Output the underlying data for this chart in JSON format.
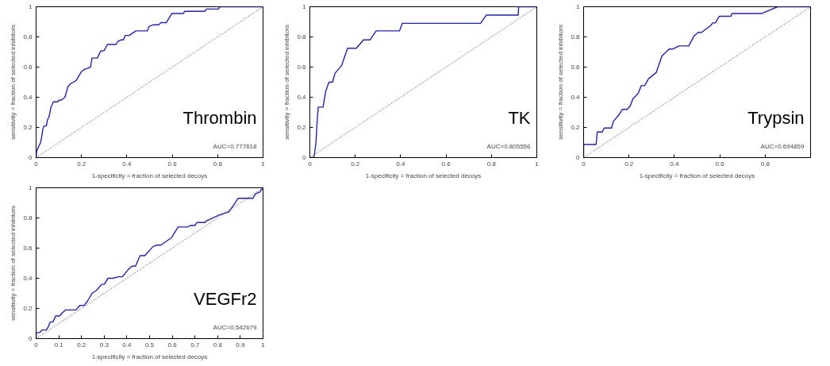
{
  "chart_data": [
    {
      "type": "line",
      "title": "Thrombin",
      "xlabel": "1-specificity = fraction of selected decoys",
      "ylabel": "sensitivity = fraction of selected inhibitors",
      "annotations": [
        "AUC=0.777618"
      ],
      "xlim": [
        0,
        1
      ],
      "ylim": [
        0,
        1
      ],
      "xticks": [
        0,
        0.2,
        0.4,
        0.6,
        0.8,
        1
      ],
      "yticks": [
        0,
        0.2,
        0.4,
        0.6,
        0.8,
        1
      ],
      "grid": false,
      "series": [
        {
          "color": "#2222aa",
          "line_style": "solid",
          "x": [
            0,
            0.002,
            0.01,
            0.02,
            0.026,
            0.03,
            0.035,
            0.045,
            0.05,
            0.057,
            0.065,
            0.076,
            0.096,
            0.1,
            0.11,
            0.127,
            0.14,
            0.152,
            0.164,
            0.176,
            0.188,
            0.2,
            0.213,
            0.223,
            0.24,
            0.246,
            0.27,
            0.284,
            0.3,
            0.314,
            0.352,
            0.36,
            0.373,
            0.385,
            0.393,
            0.41,
            0.44,
            0.49,
            0.498,
            0.516,
            0.54,
            0.55,
            0.574,
            0.598,
            0.65,
            0.654,
            0.744,
            0.75,
            0.803,
            0.81,
            1
          ],
          "values": [
            0,
            0.04,
            0.07,
            0.1,
            0.15,
            0.19,
            0.21,
            0.21,
            0.25,
            0.27,
            0.33,
            0.37,
            0.37,
            0.38,
            0.38,
            0.4,
            0.47,
            0.49,
            0.5,
            0.51,
            0.54,
            0.57,
            0.585,
            0.59,
            0.6,
            0.66,
            0.66,
            0.705,
            0.71,
            0.75,
            0.75,
            0.77,
            0.78,
            0.78,
            0.81,
            0.81,
            0.84,
            0.84,
            0.87,
            0.88,
            0.88,
            0.895,
            0.895,
            0.955,
            0.955,
            0.97,
            0.97,
            0.985,
            0.985,
            1,
            1
          ]
        },
        {
          "color": "#000000",
          "line_style": "dotted",
          "x": [
            0,
            1
          ],
          "values": [
            0,
            1
          ]
        }
      ]
    },
    {
      "type": "line",
      "title": "TK",
      "xlabel": "1-specificity = fraction of selected decoys",
      "ylabel": "sensitivity = fraction of selected inhibitors",
      "annotations": [
        "AUC=0.805556"
      ],
      "xlim": [
        0,
        1
      ],
      "ylim": [
        0,
        1
      ],
      "xticks": [
        0,
        0.2,
        0.4,
        0.6,
        0.8,
        1
      ],
      "yticks": [
        0,
        0.2,
        0.4,
        0.6,
        0.8,
        1
      ],
      "grid": false,
      "series": [
        {
          "color": "#2222aa",
          "line_style": "solid",
          "x": [
            0,
            0.018,
            0.027,
            0.032,
            0.037,
            0.058,
            0.07,
            0.084,
            0.1,
            0.111,
            0.14,
            0.166,
            0.205,
            0.236,
            0.265,
            0.292,
            0.395,
            0.407,
            0.752,
            0.778,
            0.918,
            0.92,
            1
          ],
          "values": [
            0,
            0,
            0.1,
            0.24,
            0.335,
            0.335,
            0.44,
            0.5,
            0.5,
            0.56,
            0.61,
            0.725,
            0.725,
            0.78,
            0.78,
            0.84,
            0.84,
            0.89,
            0.89,
            0.945,
            0.945,
            1,
            1
          ]
        },
        {
          "color": "#000000",
          "line_style": "dotted",
          "x": [
            0,
            1
          ],
          "values": [
            0,
            1
          ]
        }
      ]
    },
    {
      "type": "line",
      "title": "Trypsin",
      "xlabel": "1-specificity = fraction of selected decoys",
      "ylabel": "sensitivity = fraction of selected inhibitors",
      "annotations": [
        "AUC=0.694859"
      ],
      "xlim": [
        0,
        1
      ],
      "ylim": [
        0,
        1
      ],
      "xticks": [
        0,
        0.2,
        0.4,
        0.6,
        0.8
      ],
      "yticks": [
        0,
        0.2,
        0.4,
        0.6,
        0.8,
        1
      ],
      "grid": false,
      "series": [
        {
          "color": "#2222aa",
          "line_style": "solid",
          "x": [
            0,
            0,
            0.055,
            0.06,
            0.082,
            0.091,
            0.123,
            0.131,
            0.154,
            0.171,
            0.192,
            0.206,
            0.217,
            0.24,
            0.254,
            0.269,
            0.286,
            0.32,
            0.345,
            0.377,
            0.394,
            0.42,
            0.463,
            0.486,
            0.505,
            0.52,
            0.56,
            0.569,
            0.58,
            0.598,
            0.649,
            0.654,
            0.783,
            0.855,
            1
          ],
          "values": [
            0,
            0.087,
            0.087,
            0.17,
            0.17,
            0.196,
            0.196,
            0.24,
            0.28,
            0.32,
            0.32,
            0.345,
            0.39,
            0.425,
            0.477,
            0.477,
            0.523,
            0.564,
            0.674,
            0.72,
            0.72,
            0.74,
            0.74,
            0.805,
            0.83,
            0.83,
            0.875,
            0.893,
            0.893,
            0.937,
            0.937,
            0.955,
            0.955,
            1,
            1
          ]
        },
        {
          "color": "#000000",
          "line_style": "dotted",
          "x": [
            0,
            1
          ],
          "values": [
            0,
            1
          ]
        }
      ]
    },
    {
      "type": "line",
      "title": "VEGFr2",
      "xlabel": "1-specificity = fraction of selected decoys",
      "ylabel": "sensitivity = fraction of selected inhibitors",
      "annotations": [
        "AUC=0.542679"
      ],
      "xlim": [
        0,
        1
      ],
      "ylim": [
        0,
        1
      ],
      "xticks": [
        0,
        0.1,
        0.2,
        0.3,
        0.4,
        0.5,
        0.6,
        0.7,
        0.8,
        0.9,
        1
      ],
      "yticks": [
        0,
        0.2,
        0.4,
        0.6,
        0.8,
        1
      ],
      "grid": false,
      "series": [
        {
          "color": "#2222aa",
          "line_style": "solid",
          "x": [
            0,
            0.001,
            0.015,
            0.027,
            0.045,
            0.054,
            0.062,
            0.074,
            0.086,
            0.103,
            0.115,
            0.129,
            0.176,
            0.192,
            0.212,
            0.227,
            0.247,
            0.266,
            0.289,
            0.3,
            0.317,
            0.338,
            0.362,
            0.38,
            0.407,
            0.423,
            0.438,
            0.458,
            0.479,
            0.515,
            0.532,
            0.55,
            0.597,
            0.626,
            0.667,
            0.679,
            0.7,
            0.709,
            0.744,
            0.75,
            0.808,
            0.849,
            0.873,
            0.89,
            0.955,
            0.967,
            0.985,
            1
          ],
          "values": [
            0,
            0.04,
            0.04,
            0.057,
            0.057,
            0.08,
            0.11,
            0.11,
            0.15,
            0.15,
            0.17,
            0.19,
            0.19,
            0.22,
            0.22,
            0.25,
            0.3,
            0.32,
            0.36,
            0.36,
            0.4,
            0.4,
            0.41,
            0.41,
            0.46,
            0.48,
            0.48,
            0.55,
            0.55,
            0.61,
            0.62,
            0.62,
            0.67,
            0.74,
            0.74,
            0.75,
            0.75,
            0.77,
            0.77,
            0.78,
            0.82,
            0.84,
            0.89,
            0.93,
            0.93,
            0.96,
            0.97,
            1
          ]
        },
        {
          "color": "#000000",
          "line_style": "dotted",
          "x": [
            0,
            1
          ],
          "values": [
            0,
            1
          ]
        }
      ]
    }
  ]
}
